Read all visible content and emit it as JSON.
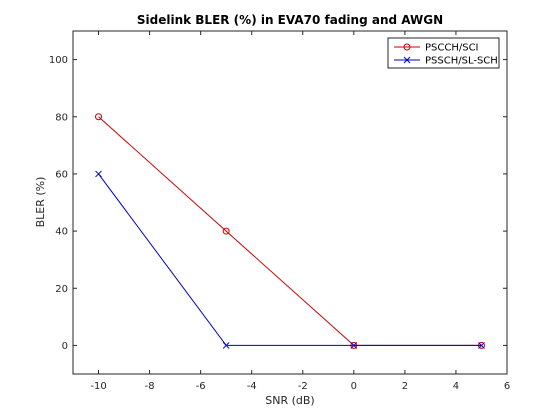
{
  "chart_data": {
    "type": "line",
    "title": "Sidelink BLER (%) in EVA70 fading and AWGN",
    "xlabel": "SNR (dB)",
    "ylabel": "BLER (%)",
    "xlim": [
      -11,
      6
    ],
    "ylim": [
      -10,
      110
    ],
    "xticks": [
      -10,
      -8,
      -6,
      -4,
      -2,
      0,
      2,
      4,
      6
    ],
    "yticks": [
      0,
      20,
      40,
      60,
      80,
      100
    ],
    "grid": true,
    "legend_position": "top-right",
    "x": [
      -10,
      -5,
      0,
      5
    ],
    "series": [
      {
        "name": "PSCCH/SCI",
        "values": [
          80,
          40,
          0,
          0
        ],
        "color": "#cc0000",
        "marker": "circle"
      },
      {
        "name": "PSSCH/SL-SCH",
        "values": [
          60,
          0,
          0,
          0
        ],
        "color": "#0000cc",
        "marker": "cross"
      }
    ]
  }
}
